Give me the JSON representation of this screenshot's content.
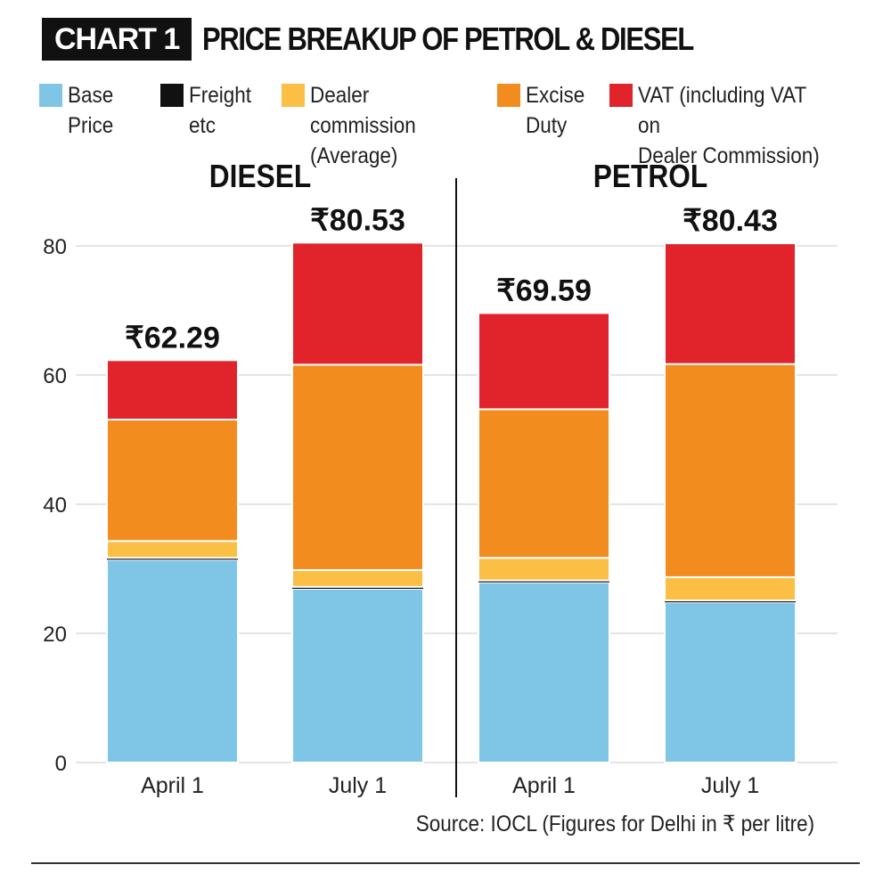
{
  "header": {
    "tag": "CHART 1",
    "title": "PRICE BREAKUP OF PETROL & DIESEL"
  },
  "legend": [
    {
      "label": "Base\nPrice",
      "color": "#7fc5e6"
    },
    {
      "label": "Freight\netc",
      "color": "#111111"
    },
    {
      "label": "Dealer commission\n(Average)",
      "color": "#fbbf45"
    },
    {
      "label": "Excise\nDuty",
      "color": "#f28c1e"
    },
    {
      "label": "VAT (including VAT on\nDealer Commission)",
      "color": "#e1242b"
    }
  ],
  "source": "Source: IOCL (Figures for Delhi in ₹ per litre)",
  "chart_data": {
    "type": "bar",
    "stacked": true,
    "ylim": [
      0,
      85
    ],
    "yticks": [
      0,
      20,
      40,
      60,
      80
    ],
    "grid": true,
    "legend_placement": "top",
    "groups": [
      {
        "title": "DIESEL",
        "categories": [
          "April 1",
          "July 1"
        ],
        "totals": [
          "₹62.29",
          "₹80.53"
        ]
      },
      {
        "title": "PETROL",
        "categories": [
          "April 1",
          "July 1"
        ],
        "totals": [
          "₹69.59",
          "₹80.43"
        ]
      }
    ],
    "series": [
      {
        "name": "Base Price",
        "color": "#7fc5e6",
        "values": [
          31.4,
          26.9,
          27.9,
          24.8
        ]
      },
      {
        "name": "Freight etc",
        "color": "#111111",
        "values": [
          0.3,
          0.3,
          0.3,
          0.3
        ]
      },
      {
        "name": "Dealer commission (Average)",
        "color": "#fbbf45",
        "values": [
          2.6,
          2.6,
          3.5,
          3.6
        ]
      },
      {
        "name": "Excise Duty",
        "color": "#f28c1e",
        "values": [
          18.8,
          31.8,
          23.0,
          33.0
        ]
      },
      {
        "name": "VAT (including VAT on Dealer Commission)",
        "color": "#e1242b",
        "values": [
          9.2,
          18.9,
          14.9,
          18.7
        ]
      }
    ]
  }
}
